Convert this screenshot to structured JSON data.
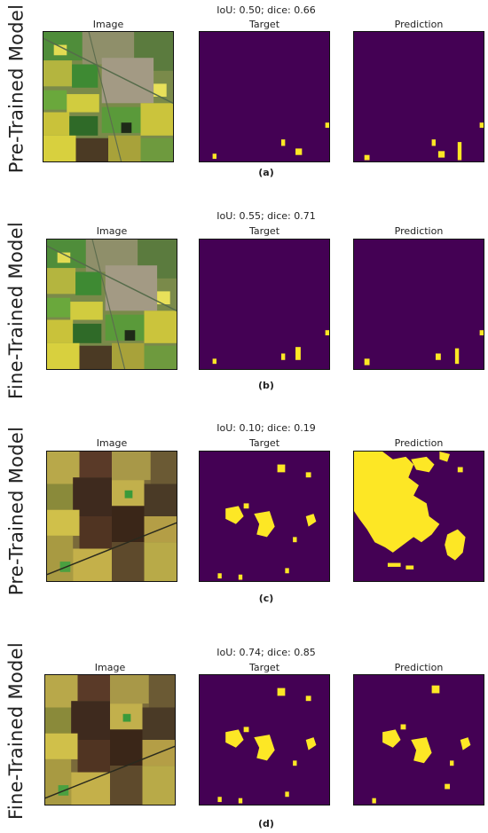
{
  "colors": {
    "mask_background": "#440154",
    "mask_foreground": "#fde725",
    "frame": "#111111"
  },
  "panels": [
    {
      "row_label": "Pre-Trained Model",
      "metric": "IoU: 0.50; dice: 0.66",
      "titles": {
        "image": "Image",
        "target": "Target",
        "prediction": "Prediction"
      },
      "caption": "(a)",
      "image_style": "green"
    },
    {
      "row_label": "Fine-Trained Model",
      "metric": "IoU: 0.55; dice: 0.71",
      "titles": {
        "image": "Image",
        "target": "Target",
        "prediction": "Prediction"
      },
      "caption": "(b)",
      "image_style": "green"
    },
    {
      "row_label": "Pre-Trained Model",
      "metric": "IoU: 0.10; dice: 0.19",
      "titles": {
        "image": "Image",
        "target": "Target",
        "prediction": "Prediction"
      },
      "caption": "(c)",
      "image_style": "brown"
    },
    {
      "row_label": "Fine-Trained Model",
      "metric": "IoU: 0.74; dice: 0.85",
      "titles": {
        "image": "Image",
        "target": "Target",
        "prediction": "Prediction"
      },
      "caption": "(d)",
      "image_style": "brown"
    }
  ]
}
